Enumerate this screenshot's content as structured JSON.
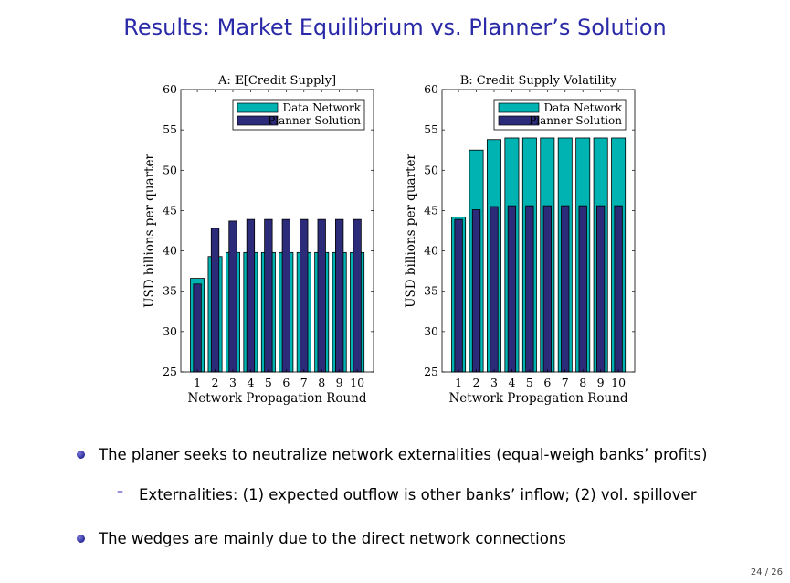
{
  "slide": {
    "title": "Results: Market Equilibrium vs. Planner’s Solution",
    "page_number": "24 / 26",
    "bullets": [
      {
        "text": "The planer seeks to neutralize network externalities (equal-weigh banks’ profits)"
      },
      {
        "text": "The wedges are mainly due to the direct network connections"
      }
    ],
    "sub_bullets": [
      {
        "text": "Externalities: (1) expected outflow is other banks’ inflow; (2) vol. spillover"
      }
    ]
  },
  "colors": {
    "title": "#2a2aa8",
    "data_network": "#00b3b3",
    "planner_solution": "#2b2b7a"
  },
  "chart_data": [
    {
      "type": "bar",
      "title_prefix": "A: ",
      "title_bold": "E",
      "title_suffix": "[Credit Supply]",
      "xlabel": "Network Propagation Round",
      "ylabel": "USD billions per quarter",
      "categories": [
        "1",
        "2",
        "3",
        "4",
        "5",
        "6",
        "7",
        "8",
        "9",
        "10"
      ],
      "ylim": [
        25,
        60
      ],
      "yticks": [
        25,
        30,
        35,
        40,
        45,
        50,
        55,
        60
      ],
      "legend_position": "top-right",
      "series": [
        {
          "name": "Data Network",
          "values": [
            36.6,
            39.3,
            39.8,
            39.8,
            39.8,
            39.8,
            39.8,
            39.8,
            39.8,
            39.8
          ]
        },
        {
          "name": "Planner Solution",
          "values": [
            35.9,
            42.8,
            43.7,
            43.9,
            43.9,
            43.9,
            43.9,
            43.9,
            43.9,
            43.9
          ]
        }
      ]
    },
    {
      "type": "bar",
      "title_prefix": "",
      "title_bold": "",
      "title_suffix": "B: Credit Supply Volatility",
      "xlabel": "Network Propagation Round",
      "ylabel": "USD billions per quarter",
      "categories": [
        "1",
        "2",
        "3",
        "4",
        "5",
        "6",
        "7",
        "8",
        "9",
        "10"
      ],
      "ylim": [
        25,
        60
      ],
      "yticks": [
        25,
        30,
        35,
        40,
        45,
        50,
        55,
        60
      ],
      "legend_position": "top-right",
      "series": [
        {
          "name": "Data Network",
          "values": [
            44.2,
            52.5,
            53.8,
            54.0,
            54.0,
            54.0,
            54.0,
            54.0,
            54.0,
            54.0
          ]
        },
        {
          "name": "Planner Solution",
          "values": [
            43.9,
            45.1,
            45.5,
            45.6,
            45.6,
            45.6,
            45.6,
            45.6,
            45.6,
            45.6
          ]
        }
      ]
    }
  ]
}
